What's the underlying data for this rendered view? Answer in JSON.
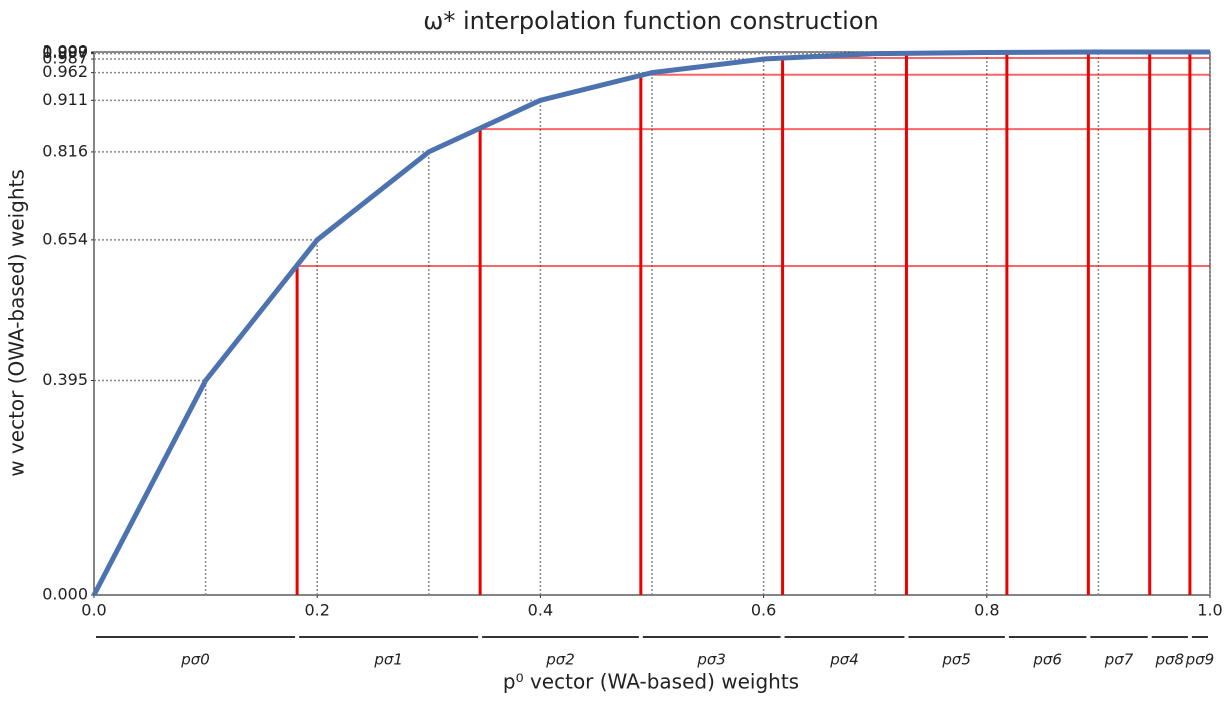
{
  "chart_data": {
    "type": "line",
    "title": "ω* interpolation function construction",
    "x_label": "p⁰ vector (WA-based) weights",
    "y_label": "w vector (OWA-based) weights",
    "x": [
      0,
      0.1,
      0.2,
      0.3,
      0.4,
      0.5,
      0.6,
      0.7,
      0.8,
      0.9,
      1.0
    ],
    "series": [
      {
        "color": "#4c72b0",
        "values": [
          0,
          0.395,
          0.654,
          0.816,
          0.911,
          0.962,
          0.987,
          0.997,
          0.999,
          1.0,
          1.0
        ]
      }
    ],
    "thresholds": {
      "color": "#ee0000",
      "x": [
        0.182,
        0.346,
        0.49,
        0.617,
        0.728,
        0.818,
        0.891,
        0.946,
        0.982
      ],
      "values": [
        0.606,
        0.858,
        0.958,
        0.989,
        0.998,
        0.9995,
        1.0,
        1.0,
        1.0
      ]
    },
    "segments": {
      "labels": [
        "pσ0",
        "pσ1",
        "pσ2",
        "pσ3",
        "pσ4",
        "pσ5",
        "pσ6",
        "pσ7",
        "pσ8",
        "pσ9"
      ],
      "edges": [
        0,
        0.182,
        0.346,
        0.49,
        0.617,
        0.728,
        0.818,
        0.891,
        0.946,
        0.982,
        1.0
      ]
    },
    "xlim": [
      0,
      1
    ],
    "ylim": [
      0,
      1
    ],
    "xticks": [
      {
        "value": 0,
        "label": "0.0"
      },
      0.2,
      0.4,
      0.6,
      0.8,
      {
        "value": 1,
        "label": "1.0"
      }
    ],
    "yticks": [
      {
        "value": 0,
        "label": "0.000"
      },
      {
        "value": 0.395,
        "label": "0.395"
      },
      {
        "value": 0.654,
        "label": "0.654"
      },
      {
        "value": 0.816,
        "label": "0.816"
      },
      {
        "value": 0.911,
        "label": "0.911"
      },
      {
        "value": 0.962,
        "label": "0.962"
      },
      {
        "value": 0.987,
        "label": "0.987"
      },
      {
        "value": 0.997,
        "label": "0.997"
      },
      {
        "value": 0.999,
        "label": "0.999"
      },
      {
        "value": 1.0,
        "label": "1.000"
      }
    ]
  }
}
